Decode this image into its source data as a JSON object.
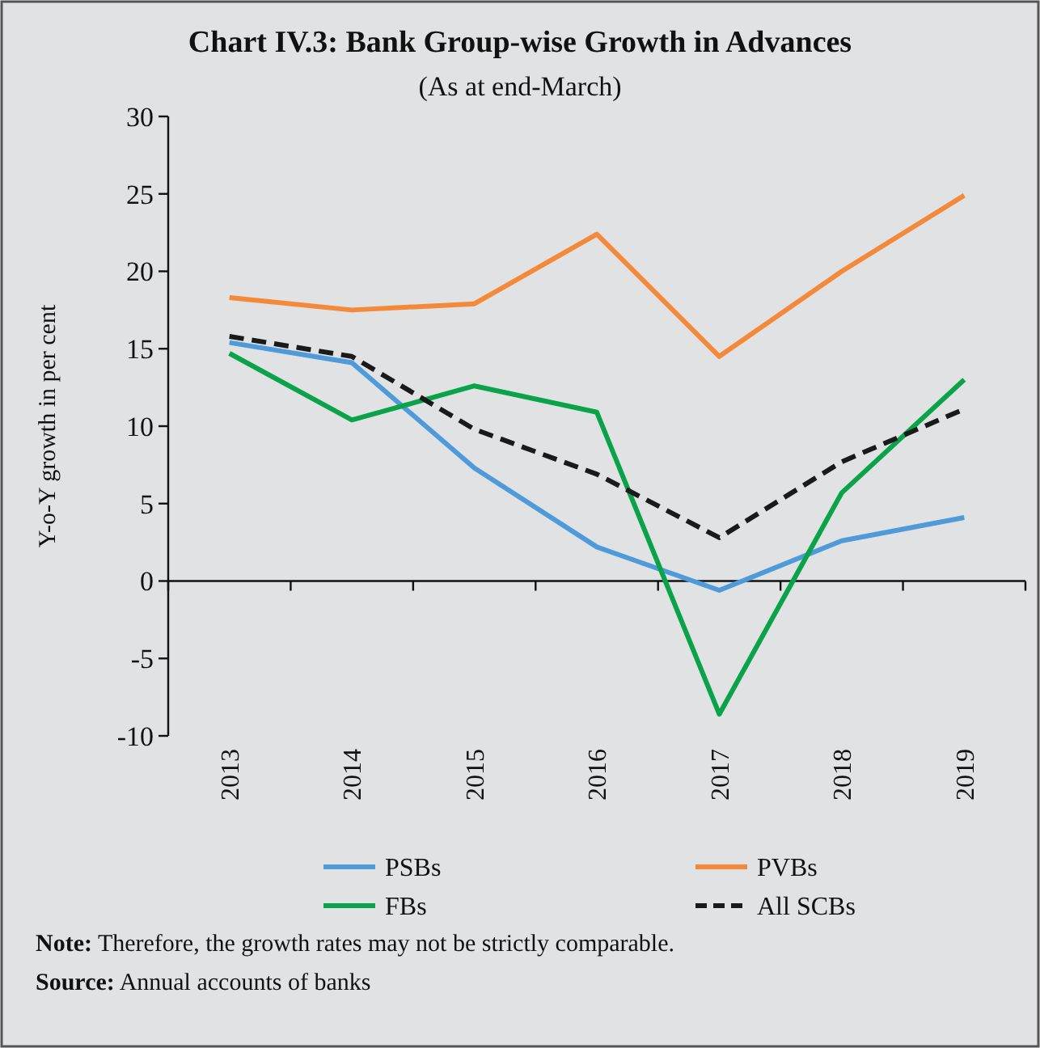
{
  "chart_data": {
    "type": "line",
    "title": "Chart IV.3: Bank Group-wise Growth in Advances",
    "subtitle": "(As at end-March)",
    "ylabel": "Y-o-Y growth in per cent",
    "categories": [
      "2013",
      "2014",
      "2015",
      "2016",
      "2017",
      "2018",
      "2019"
    ],
    "series": [
      {
        "name": "PSBs",
        "color": "#4f9bd9",
        "values": [
          15.4,
          14.1,
          7.3,
          2.2,
          -0.6,
          2.6,
          4.1
        ]
      },
      {
        "name": "PVBs",
        "color": "#f5893a",
        "values": [
          18.3,
          17.5,
          17.9,
          22.4,
          14.5,
          20.0,
          24.9
        ]
      },
      {
        "name": "FBs",
        "color": "#0aa34a",
        "values": [
          14.7,
          10.4,
          12.6,
          10.9,
          -8.6,
          5.7,
          13.0
        ]
      },
      {
        "name": "All SCBs",
        "color": "#1a1a1a",
        "values": [
          15.8,
          14.5,
          9.8,
          6.9,
          2.8,
          7.7,
          11.1
        ],
        "line_style": "dashed"
      }
    ],
    "ylim": [
      -10,
      30
    ],
    "yticks": [
      -10,
      -5,
      0,
      5,
      10,
      15,
      20,
      25,
      30
    ],
    "legend": "bottom",
    "line_style": "solid",
    "annotations": [
      "Note: Therefore, the growth rates may not be strictly comparable.",
      "Source: Annual accounts of banks"
    ]
  }
}
